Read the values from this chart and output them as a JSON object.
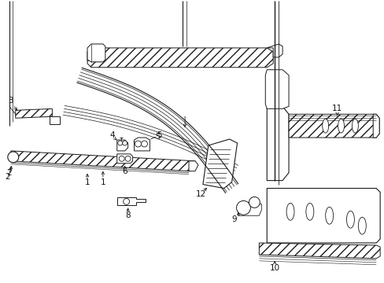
{
  "background_color": "#ffffff",
  "line_color": "#1a1a1a",
  "label_color": "#111111",
  "fig_width": 4.89,
  "fig_height": 3.6,
  "dpi": 100
}
